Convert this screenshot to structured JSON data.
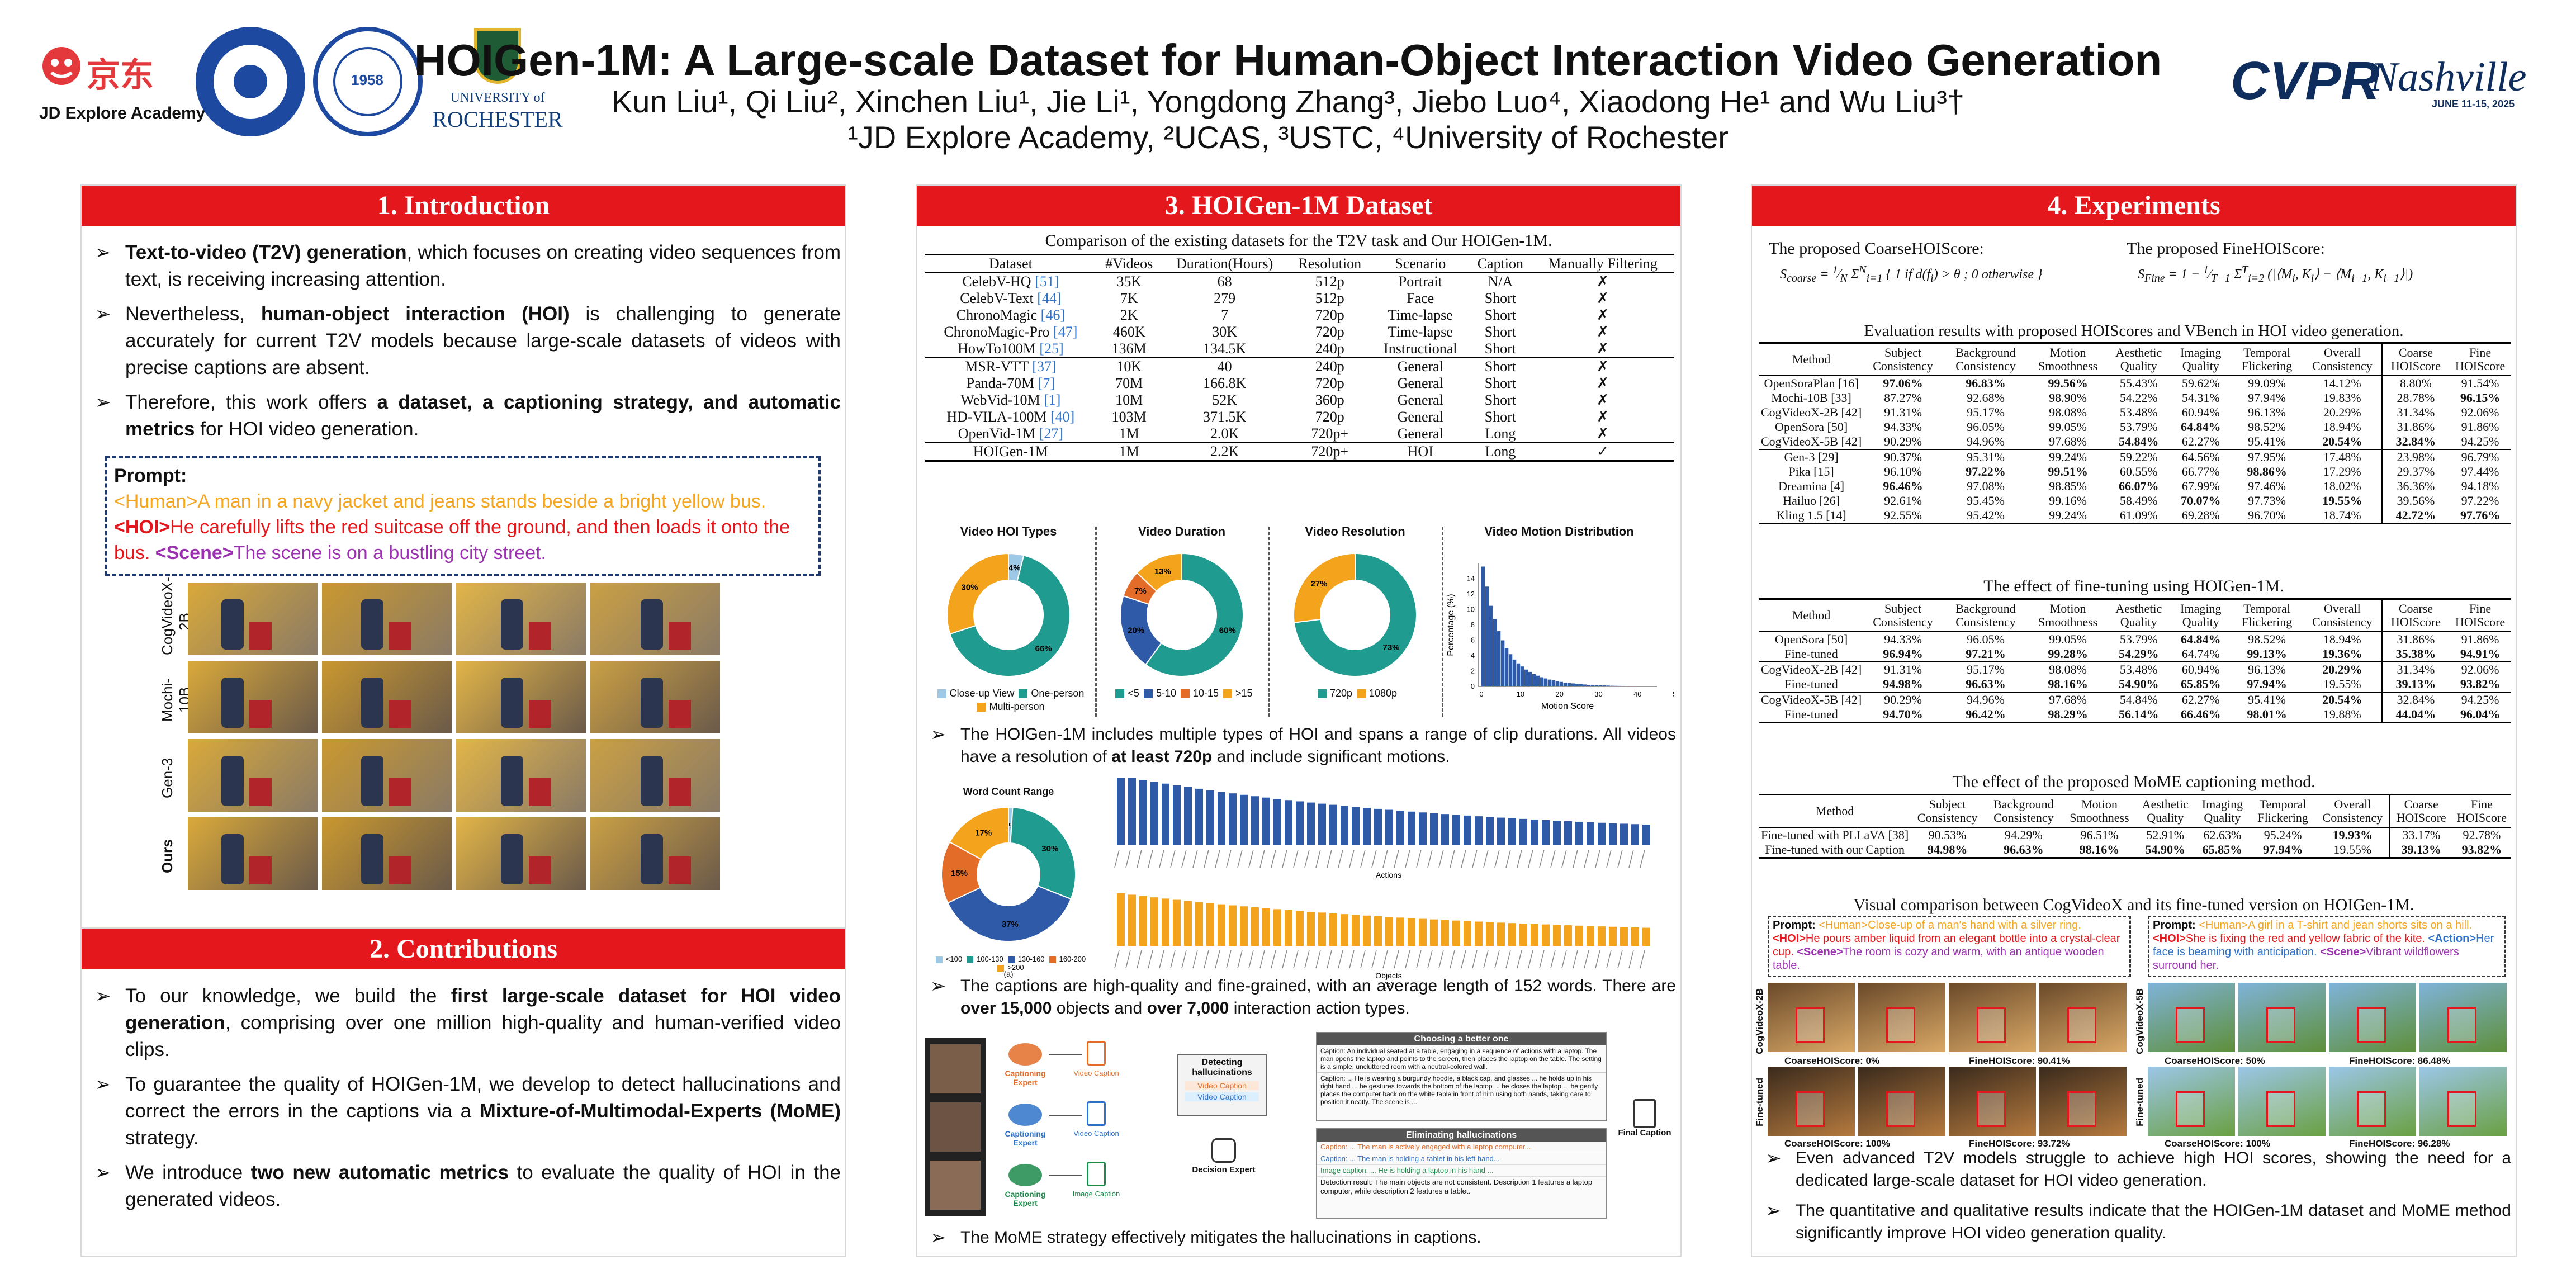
{
  "header": {
    "logo_jd_text": "京东",
    "logo_jd_caption": "JD Explore Academy",
    "logo_rochester_top": "UNIVERSITY of",
    "logo_rochester": "ROCHESTER",
    "logo_cvpr": "CVPR",
    "logo_cvpr_script": "Nashville",
    "logo_cvpr_date": "JUNE 11-15, 2025",
    "title": "HOIGen-1M: A Large-scale Dataset for Human-Object Interaction Video Generation",
    "authors": "Kun Liu¹, Qi Liu², Xinchen Liu¹, Jie Li¹, Yongdong Zhang³, Jiebo Luo⁴, Xiaodong He¹ and Wu Liu³†",
    "affiliations": "¹JD Explore Academy, ²UCAS, ³USTC, ⁴University of Rochester"
  },
  "intro": {
    "title": "1. Introduction",
    "b1_bold": "Text-to-video (T2V) generation",
    "b1_rest": ", which focuses on creating video sequences from text, is receiving increasing attention.",
    "b2_pre": "Nevertheless, ",
    "b2_bold": "human-object interaction (HOI)",
    "b2_rest": " is challenging to generate accurately for current T2V models because large-scale datasets of videos with precise captions are absent.",
    "b3_pre": "Therefore, this work offers ",
    "b3_bold": "a dataset, a captioning strategy, and automatic metrics",
    "b3_rest": " for HOI video generation.",
    "prompt_label": "Prompt:",
    "p_human_tag": "<Human>",
    "p_human": "A man in a navy jacket and jeans stands beside  a bright yellow bus. ",
    "p_hoi_tag": "<HOI>",
    "p_hoi": "He carefully lifts the red suitcase off the ground, and then loads it onto the bus. ",
    "p_scene_tag": "<Scene>",
    "p_scene": "The scene is on a bustling city street.",
    "rows": [
      "CogVideoX-2B",
      "Mochi-10B",
      "Gen-3",
      "Ours"
    ]
  },
  "contrib": {
    "title": "2. Contributions",
    "b1_pre": "To our knowledge, we build the ",
    "b1_bold": "first large-scale dataset for HOI video generation",
    "b1_rest": ", comprising over one million high-quality and human-verified video clips.",
    "b2_pre": "To guarantee the quality of HOIGen-1M, we develop to detect hallucinations and correct the errors in the captions via a ",
    "b2_bold": "Mixture-of-Multimodal-Experts (MoME)",
    "b2_rest": " strategy.",
    "b3_pre": "We introduce ",
    "b3_bold": "two new automatic metrics",
    "b3_rest": " to evaluate the quality of HOI in the generated videos."
  },
  "dataset": {
    "title": "3. HOIGen-1M Dataset",
    "table_caption": "Comparison of the existing datasets for the T2V task and Our HOIGen-1M.",
    "headers": [
      "Dataset",
      "#Videos",
      "Duration(Hours)",
      "Resolution",
      "Scenario",
      "Caption",
      "Manually Filtering"
    ],
    "group1": [
      [
        "CelebV-HQ",
        "[51]",
        "35K",
        "68",
        "512p",
        "Portrait",
        "N/A",
        "✗"
      ],
      [
        "CelebV-Text",
        "[44]",
        "7K",
        "279",
        "512p",
        "Face",
        "Short",
        "✗"
      ],
      [
        "ChronoMagic",
        "[46]",
        "2K",
        "7",
        "720p",
        "Time-lapse",
        "Short",
        "✗"
      ],
      [
        "ChronoMagic-Pro",
        "[47]",
        "460K",
        "30K",
        "720p",
        "Time-lapse",
        "Short",
        "✗"
      ],
      [
        "HowTo100M",
        "[25]",
        "136M",
        "134.5K",
        "240p",
        "Instructional",
        "Short",
        "✗"
      ]
    ],
    "group2": [
      [
        "MSR-VTT",
        "[37]",
        "10K",
        "40",
        "240p",
        "General",
        "Short",
        "✗"
      ],
      [
        "Panda-70M",
        "[7]",
        "70M",
        "166.8K",
        "720p",
        "General",
        "Short",
        "✗"
      ],
      [
        "WebVid-10M",
        "[1]",
        "10M",
        "52K",
        "360p",
        "General",
        "Short",
        "✗"
      ],
      [
        "HD-VILA-100M",
        "[40]",
        "103M",
        "371.5K",
        "720p",
        "General",
        "Short",
        "✗"
      ],
      [
        "OpenVid-1M",
        "[27]",
        "1M",
        "2.0K",
        "720p+",
        "General",
        "Long",
        "✗"
      ]
    ],
    "ours": [
      "HOIGen-1M",
      "",
      "1M",
      "2.2K",
      "720p+",
      "HOI",
      "Long",
      "✓"
    ],
    "charts": [
      {
        "title": "Video HOI Types",
        "slices": [
          {
            "label": "Close-up View",
            "value": 4,
            "color": "#9ec9e6"
          },
          {
            "label": "One-person",
            "value": 66,
            "color": "#1f9c8f"
          },
          {
            "label": "Multi-person",
            "value": 30,
            "color": "#f4a41c"
          }
        ],
        "labels": [
          "4%",
          "66%",
          "30%"
        ]
      },
      {
        "title": "Video Duration",
        "slices": [
          {
            "label": "<5",
            "value": 60,
            "color": "#1f9c8f"
          },
          {
            "label": "5-10",
            "value": 20,
            "color": "#2e5aa8"
          },
          {
            "label": "10-15",
            "value": 7,
            "color": "#e36c28"
          },
          {
            "label": ">15",
            "value": 13,
            "color": "#f4a41c"
          }
        ],
        "labels": [
          "60%",
          "20%",
          "7%",
          "13%"
        ]
      },
      {
        "title": "Video Resolution",
        "slices": [
          {
            "label": "720p",
            "value": 73,
            "color": "#1f9c8f"
          },
          {
            "label": "1080p",
            "value": 27,
            "color": "#f4a41c"
          }
        ],
        "labels": [
          "73%",
          "27%"
        ]
      }
    ],
    "motion": {
      "title": "Video Motion Distribution",
      "xlabel": "Motion Score",
      "ylabel": "Percentage (%)",
      "xticks": [
        "0",
        "10",
        "20",
        "30",
        "40",
        "50"
      ],
      "yticks": [
        "0",
        "2",
        "4",
        "6",
        "8",
        "10",
        "12",
        "14"
      ]
    },
    "b1_pre": "The HOIGen-1M includes multiple types of HOI and spans a range of clip durations. All videos have a resolution of ",
    "b1_bold": "at least 720p",
    "b1_rest": " and include significant motions.",
    "wordcount": {
      "title": "Word Count Range",
      "slices": [
        {
          "label": "<100",
          "value": 1,
          "color": "#9ec9e6"
        },
        {
          "label": "100-130",
          "value": 30,
          "color": "#1f9c8f"
        },
        {
          "label": "130-160",
          "value": 37,
          "color": "#2e5aa8"
        },
        {
          "label": "160-200",
          "value": 15,
          "color": "#e36c28"
        },
        {
          "label": ">200",
          "value": 17,
          "color": "#f4a41c"
        }
      ],
      "labels": [
        "1%",
        "30%",
        "37%",
        "15%",
        "17%"
      ],
      "sub": "(a)"
    },
    "bars": {
      "top_label": "Actions",
      "bottom_label": "Objects",
      "sub": "(b)"
    },
    "b2_pre": "The captions are high-quality and fine-grained, with an average length of 152 words. There are ",
    "b2_bold1": "over 15,000",
    "b2_mid": " objects and ",
    "b2_bold2": "over 7,000",
    "b2_rest": " interaction action types.",
    "mome": {
      "experts": [
        "Captioning Expert",
        "Captioning Expert",
        "Captioning Expert"
      ],
      "captions": [
        "Video Caption",
        "Video Caption",
        "Image Caption"
      ],
      "detect_title": "Detecting hallucinations",
      "detect_items": [
        "Video Caption",
        "Video Caption"
      ],
      "decision": "Decision Expert",
      "choose_title": "Choosing a better one",
      "choose_text": "Caption: An individual seated at a table, engaging in a sequence of actions with a laptop. The man opens the laptop and points to the screen, then places the laptop on the table. The setting is a simple, uncluttered room with a neutral-colored wall.",
      "choose_text2": "Caption: ... He is wearing a burgundy hoodie, a black cap, and glasses ... he holds up in his right hand ... he gestures towards the bottom of the laptop ... he closes the laptop ... he gently places the computer back on the white table in front of him using both hands, taking care to position it neatly. The scene is ...",
      "elim_title": "Eliminating hallucinations",
      "elim1": "Caption: ... The man is actively engaged with a laptop computer...",
      "elim2": "Caption: ... The man is holding a tablet in his left hand...",
      "elim3": "Image caption: ... He is holding a laptop in his hand ...",
      "elim4": "Detection result: The main objects are not consistent. Description 1 features a laptop computer, while description 2 features a tablet.",
      "final": "Final Caption"
    },
    "b3": "The MoME strategy effectively mitigates the hallucinations in captions."
  },
  "exp": {
    "title": "4. Experiments",
    "coarse_label": "The proposed CoarseHOIScore:",
    "fine_label": "The proposed FineHOIScore:",
    "t1_caption": "Evaluation results with proposed HOIScores and VBench in HOI video generation.",
    "headers": [
      "Method",
      "Subject Consistency",
      "Background Consistency",
      "Motion Smoothness",
      "Aesthetic Quality",
      "Imaging Quality",
      "Temporal Flickering",
      "Overall Consistency",
      "Coarse HOIScore",
      "Fine HOIScore"
    ],
    "t1g1": [
      [
        "OpenSoraPlan [16]",
        "97.06%",
        "96.83%",
        "99.56%",
        "55.43%",
        "59.62%",
        "99.09%",
        "14.12%",
        "8.80%",
        "91.54%"
      ],
      [
        "Mochi-10B [33]",
        "87.27%",
        "92.68%",
        "98.90%",
        "54.22%",
        "54.31%",
        "97.94%",
        "19.83%",
        "28.78%",
        "96.15%"
      ],
      [
        "CogVideoX-2B [42]",
        "91.31%",
        "95.17%",
        "98.08%",
        "53.48%",
        "60.94%",
        "96.13%",
        "20.29%",
        "31.34%",
        "92.06%"
      ],
      [
        "OpenSora [50]",
        "94.33%",
        "96.05%",
        "99.05%",
        "53.79%",
        "64.84%",
        "98.52%",
        "18.94%",
        "31.86%",
        "91.86%"
      ],
      [
        "CogVideoX-5B [42]",
        "90.29%",
        "94.96%",
        "97.68%",
        "54.84%",
        "62.27%",
        "95.41%",
        "20.54%",
        "32.84%",
        "94.25%"
      ]
    ],
    "t1g1_bold": [
      [
        1,
        2,
        3
      ],
      [
        9
      ],
      [],
      [
        5
      ],
      [
        4,
        7,
        8
      ]
    ],
    "t1g2": [
      [
        "Gen-3 [29]",
        "90.37%",
        "95.31%",
        "99.24%",
        "59.22%",
        "64.56%",
        "97.95%",
        "17.48%",
        "23.98%",
        "96.79%"
      ],
      [
        "Pika [15]",
        "96.10%",
        "97.22%",
        "99.51%",
        "60.55%",
        "66.77%",
        "98.86%",
        "17.29%",
        "29.37%",
        "97.44%"
      ],
      [
        "Dreamina [4]",
        "96.46%",
        "97.08%",
        "98.85%",
        "66.07%",
        "67.99%",
        "97.46%",
        "18.02%",
        "36.36%",
        "94.18%"
      ],
      [
        "Hailuo [26]",
        "92.61%",
        "95.45%",
        "99.16%",
        "58.49%",
        "70.07%",
        "97.73%",
        "19.55%",
        "39.56%",
        "97.22%"
      ],
      [
        "Kling 1.5 [14]",
        "92.55%",
        "95.42%",
        "99.24%",
        "61.09%",
        "69.28%",
        "96.70%",
        "18.74%",
        "42.72%",
        "97.76%"
      ]
    ],
    "t1g2_bold": [
      [],
      [
        2,
        3,
        6
      ],
      [
        1,
        4
      ],
      [
        5,
        7
      ],
      [
        8,
        9
      ]
    ],
    "t2_caption": "The effect of fine-tuning using HOIGen-1M.",
    "t2": [
      [
        "OpenSora [50]",
        "94.33%",
        "96.05%",
        "99.05%",
        "53.79%",
        "64.84%",
        "98.52%",
        "18.94%",
        "31.86%",
        "91.86%"
      ],
      [
        "Fine-tuned",
        "96.94%",
        "97.21%",
        "99.28%",
        "54.29%",
        "64.74%",
        "99.13%",
        "19.36%",
        "35.38%",
        "94.91%"
      ],
      [
        "CogVideoX-2B [42]",
        "91.31%",
        "95.17%",
        "98.08%",
        "53.48%",
        "60.94%",
        "96.13%",
        "20.29%",
        "31.34%",
        "92.06%"
      ],
      [
        "Fine-tuned",
        "94.98%",
        "96.63%",
        "98.16%",
        "54.90%",
        "65.85%",
        "97.94%",
        "19.55%",
        "39.13%",
        "93.82%"
      ],
      [
        "CogVideoX-5B [42]",
        "90.29%",
        "94.96%",
        "97.68%",
        "54.84%",
        "62.27%",
        "95.41%",
        "20.54%",
        "32.84%",
        "94.25%"
      ],
      [
        "Fine-tuned",
        "94.70%",
        "96.42%",
        "98.29%",
        "56.14%",
        "66.46%",
        "98.01%",
        "19.88%",
        "44.04%",
        "96.04%"
      ]
    ],
    "t2_bold": [
      [
        5
      ],
      [
        1,
        2,
        3,
        4,
        6,
        7,
        8,
        9
      ],
      [
        7
      ],
      [
        1,
        2,
        3,
        4,
        5,
        6,
        8,
        9
      ],
      [
        7
      ],
      [
        1,
        2,
        3,
        4,
        5,
        6,
        8,
        9
      ]
    ],
    "t3_caption": "The effect of the proposed MoME captioning method.",
    "t3": [
      [
        "Fine-tuned with PLLaVA [38]",
        "90.53%",
        "94.29%",
        "96.51%",
        "52.91%",
        "62.63%",
        "95.24%",
        "19.93%",
        "33.17%",
        "92.78%"
      ],
      [
        "Fine-tuned with our Caption",
        "94.98%",
        "96.63%",
        "98.16%",
        "54.90%",
        "65.85%",
        "97.94%",
        "19.55%",
        "39.13%",
        "93.82%"
      ]
    ],
    "t3_bold": [
      [
        7
      ],
      [
        1,
        2,
        3,
        4,
        5,
        6,
        8,
        9
      ]
    ],
    "vis_caption": "Visual comparison between CogVideoX and its fine-tuned version on HOIGen-1M.",
    "left_prompt_label": "Prompt:",
    "left_human_tag": "<Human>",
    "left_human": "Close-up of a man's hand with a silver ring. ",
    "left_hoi_tag": "<HOI>",
    "left_hoi": "He pours amber liquid from an elegant bottle into a crystal-clear cup. ",
    "left_scene_tag": "<Scene>",
    "left_scene": "The room is cozy and warm, with an antique wooden table.",
    "right_prompt_label": "Prompt:",
    "right_human_tag": "<Human>",
    "right_human": "A girl in a T-shirt and jean shorts sits on a hill. ",
    "right_hoi_tag": "<HOI>",
    "right_hoi": "She is fixing the red and yellow fabric of the kite. ",
    "right_action_tag": "<Action>",
    "right_action": "Her face is beaming with anticipation. ",
    "right_scene_tag": "<Scene>",
    "right_scene": "Vibrant wildflowers surround her.",
    "left_row1": "CogVideoX-2B",
    "left_row2": "Fine-tuned",
    "right_row1": "CogVideoX-5B",
    "right_row2": "Fine-tuned",
    "ls1a": "CoarseHOIScore: 0%",
    "ls1b": "FineHOIScore: 90.41%",
    "ls2a": "CoarseHOIScore: 100%",
    "ls2b": "FineHOIScore: 93.72%",
    "rs1a": "CoarseHOIScore: 50%",
    "rs1b": "FineHOIScore: 86.48%",
    "rs2a": "CoarseHOIScore: 100%",
    "rs2b": "FineHOIScore: 96.28%",
    "b1": "Even advanced T2V models struggle to achieve high HOI scores, showing the need for a dedicated large-scale dataset for HOI video generation.",
    "b2": "The quantitative and qualitative results indicate that the HOIGen-1M dataset and MoME  method significantly improve HOI video generation quality."
  }
}
